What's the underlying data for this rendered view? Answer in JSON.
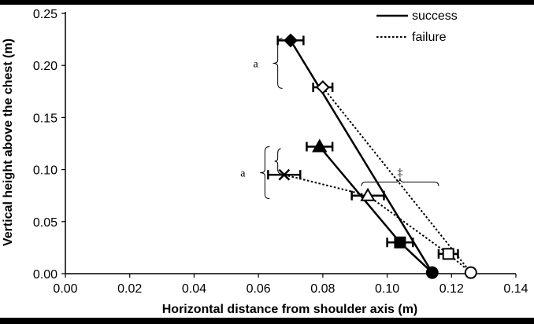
{
  "chart_data": {
    "type": "scatter",
    "xlabel": "Horizontal distance from shoulder axis (m)",
    "ylabel": "Vertical height above the chest (m)",
    "xlim": [
      0,
      0.14
    ],
    "ylim": [
      0,
      0.25
    ],
    "x_ticks": [
      "0.00",
      "0.02",
      "0.04",
      "0.06",
      "0.08",
      "0.10",
      "0.12",
      "0.14"
    ],
    "y_ticks": [
      "0.00",
      "0.05",
      "0.10",
      "0.15",
      "0.20",
      "0.25"
    ],
    "grid": false,
    "legend_placement": "top-right",
    "series": [
      {
        "name": "success",
        "line_style": "solid",
        "lines": [
          {
            "points": [
              {
                "x": 0.07,
                "y": 0.224,
                "xerr": 0.004,
                "marker": "diamond",
                "fill": "filled"
              },
              {
                "x": 0.114,
                "y": 0.001,
                "xerr": 0.0,
                "marker": "circle",
                "fill": "filled"
              }
            ]
          },
          {
            "points": [
              {
                "x": 0.079,
                "y": 0.122,
                "xerr": 0.004,
                "marker": "triangle",
                "fill": "filled"
              },
              {
                "x": 0.104,
                "y": 0.03,
                "xerr": 0.004,
                "marker": "square",
                "fill": "filled"
              },
              {
                "x": 0.114,
                "y": 0.001,
                "xerr": 0.0,
                "marker": "circle",
                "fill": "filled"
              }
            ]
          }
        ]
      },
      {
        "name": "failure",
        "line_style": "dotted",
        "lines": [
          {
            "points": [
              {
                "x": 0.08,
                "y": 0.179,
                "xerr": 0.003,
                "marker": "diamond",
                "fill": "open"
              },
              {
                "x": 0.126,
                "y": 0.001,
                "xerr": 0.0,
                "marker": "circle",
                "fill": "open"
              }
            ]
          },
          {
            "points": [
              {
                "x": 0.068,
                "y": 0.095,
                "xerr": 0.005,
                "marker": "cross",
                "fill": "filled"
              },
              {
                "x": 0.094,
                "y": 0.075,
                "xerr": 0.005,
                "marker": "triangle",
                "fill": "open"
              },
              {
                "x": 0.119,
                "y": 0.019,
                "xerr": 0.003,
                "marker": "square",
                "fill": "open"
              },
              {
                "x": 0.126,
                "y": 0.001,
                "xerr": 0.0,
                "marker": "circle",
                "fill": "open"
              }
            ]
          }
        ]
      }
    ],
    "annotations": [
      {
        "text": "a",
        "type": "brace-left",
        "x": 0.066,
        "y_range": [
          0.178,
          0.226
        ]
      },
      {
        "text": "a",
        "type": "brace-left",
        "x": 0.062,
        "y_range": [
          0.072,
          0.122
        ]
      },
      {
        "text": "",
        "type": "brace-left-small",
        "x": 0.066,
        "y_range": [
          0.096,
          0.12
        ]
      },
      {
        "text": "‡",
        "type": "brace-top",
        "y": 0.088,
        "x_range": [
          0.092,
          0.116
        ]
      }
    ]
  }
}
